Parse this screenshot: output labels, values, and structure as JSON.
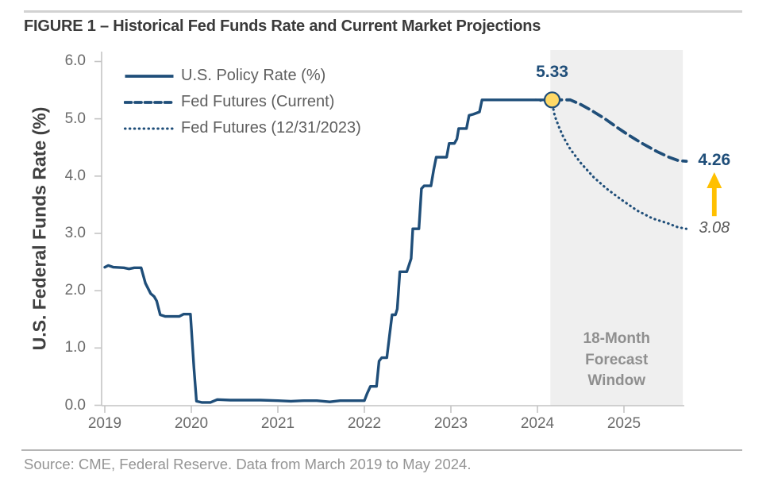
{
  "header": {
    "title": "FIGURE 1 – Historical Fed Funds Rate and Current Market Projections"
  },
  "source_note": "Source: CME, Federal Reserve. Data from March 2019 to May 2024.",
  "colors": {
    "line_navy": "#1f4e79",
    "gold": "#ffc000",
    "dot_fill": "#ffd966",
    "axis_gray": "#c4c4c4",
    "forecast_window_fill": "#efefef",
    "text_gray": "#5f5f5f",
    "source_gray": "#949494"
  },
  "chart_data": {
    "type": "line",
    "title": "FIGURE 1 – Historical Fed Funds Rate and Current Market Projections",
    "xlabel": "",
    "ylabel": "U.S. Federal Funds Rate (%)",
    "ylim": [
      0,
      6
    ],
    "xlim": [
      2019,
      2025.75
    ],
    "grid": false,
    "legend_position": "top-left-inside",
    "y_ticks": [
      "0.0",
      "1.0",
      "2.0",
      "3.0",
      "4.0",
      "5.0",
      "6.0"
    ],
    "x_ticks": [
      "2019",
      "2020",
      "2021",
      "2022",
      "2023",
      "2024",
      "2025"
    ],
    "legend": [
      {
        "label": "U.S. Policy Rate (%)",
        "style": "solid"
      },
      {
        "label": "Fed Futures (Current)",
        "style": "dashed"
      },
      {
        "label": "Fed Futures (12/31/2023)",
        "style": "dotted"
      }
    ],
    "forecast_window": {
      "label": "18-Month Forecast Window",
      "x_start": 2024.15,
      "x_end": 2025.68
    },
    "annotations": {
      "peak": {
        "label": "5.33",
        "x": 2024.17,
        "y": 5.33
      },
      "current_end": {
        "label": "4.26",
        "x": 2025.7,
        "y": 4.26
      },
      "old_end": {
        "label": "3.08",
        "x": 2025.7,
        "y": 3.08
      }
    },
    "series": [
      {
        "name": "U.S. Policy Rate (%)",
        "style": "solid",
        "points": [
          [
            2019.0,
            2.41
          ],
          [
            2019.04,
            2.44
          ],
          [
            2019.1,
            2.41
          ],
          [
            2019.22,
            2.4
          ],
          [
            2019.28,
            2.38
          ],
          [
            2019.34,
            2.4
          ],
          [
            2019.42,
            2.4
          ],
          [
            2019.47,
            2.13
          ],
          [
            2019.53,
            1.95
          ],
          [
            2019.57,
            1.9
          ],
          [
            2019.6,
            1.82
          ],
          [
            2019.64,
            1.58
          ],
          [
            2019.7,
            1.55
          ],
          [
            2019.86,
            1.55
          ],
          [
            2019.91,
            1.59
          ],
          [
            2019.99,
            1.59
          ],
          [
            2020.03,
            0.65
          ],
          [
            2020.06,
            0.07
          ],
          [
            2020.12,
            0.05
          ],
          [
            2020.22,
            0.05
          ],
          [
            2020.3,
            0.1
          ],
          [
            2020.45,
            0.09
          ],
          [
            2020.62,
            0.09
          ],
          [
            2020.8,
            0.09
          ],
          [
            2021.0,
            0.08
          ],
          [
            2021.15,
            0.07
          ],
          [
            2021.3,
            0.08
          ],
          [
            2021.45,
            0.08
          ],
          [
            2021.6,
            0.06
          ],
          [
            2021.72,
            0.08
          ],
          [
            2021.9,
            0.08
          ],
          [
            2022.0,
            0.08
          ],
          [
            2022.03,
            0.2
          ],
          [
            2022.07,
            0.33
          ],
          [
            2022.14,
            0.33
          ],
          [
            2022.17,
            0.77
          ],
          [
            2022.2,
            0.83
          ],
          [
            2022.26,
            0.83
          ],
          [
            2022.29,
            1.21
          ],
          [
            2022.32,
            1.58
          ],
          [
            2022.36,
            1.58
          ],
          [
            2022.38,
            1.68
          ],
          [
            2022.41,
            2.33
          ],
          [
            2022.49,
            2.33
          ],
          [
            2022.51,
            2.42
          ],
          [
            2022.54,
            2.56
          ],
          [
            2022.56,
            3.08
          ],
          [
            2022.63,
            3.08
          ],
          [
            2022.66,
            3.78
          ],
          [
            2022.69,
            3.83
          ],
          [
            2022.77,
            3.83
          ],
          [
            2022.8,
            4.1
          ],
          [
            2022.83,
            4.33
          ],
          [
            2022.95,
            4.33
          ],
          [
            2022.98,
            4.57
          ],
          [
            2023.04,
            4.57
          ],
          [
            2023.07,
            4.65
          ],
          [
            2023.09,
            4.83
          ],
          [
            2023.18,
            4.83
          ],
          [
            2023.21,
            5.06
          ],
          [
            2023.26,
            5.08
          ],
          [
            2023.33,
            5.12
          ],
          [
            2023.36,
            5.33
          ],
          [
            2024.17,
            5.33
          ]
        ]
      },
      {
        "name": "Fed Futures (Current)",
        "style": "dashed",
        "points": [
          [
            2024.17,
            5.33
          ],
          [
            2024.38,
            5.33
          ],
          [
            2024.5,
            5.25
          ],
          [
            2024.62,
            5.15
          ],
          [
            2024.78,
            5.0
          ],
          [
            2024.92,
            4.85
          ],
          [
            2025.05,
            4.72
          ],
          [
            2025.2,
            4.58
          ],
          [
            2025.38,
            4.43
          ],
          [
            2025.52,
            4.33
          ],
          [
            2025.63,
            4.27
          ],
          [
            2025.72,
            4.26
          ]
        ]
      },
      {
        "name": "Fed Futures (12/31/2023)",
        "style": "dotted",
        "points": [
          [
            2023.98,
            5.33
          ],
          [
            2024.1,
            5.31
          ],
          [
            2024.17,
            5.28
          ],
          [
            2024.2,
            5.05
          ],
          [
            2024.25,
            4.85
          ],
          [
            2024.3,
            4.68
          ],
          [
            2024.38,
            4.47
          ],
          [
            2024.5,
            4.23
          ],
          [
            2024.65,
            3.98
          ],
          [
            2024.8,
            3.78
          ],
          [
            2024.96,
            3.6
          ],
          [
            2025.15,
            3.4
          ],
          [
            2025.33,
            3.26
          ],
          [
            2025.5,
            3.18
          ],
          [
            2025.62,
            3.11
          ],
          [
            2025.72,
            3.08
          ]
        ]
      }
    ]
  }
}
